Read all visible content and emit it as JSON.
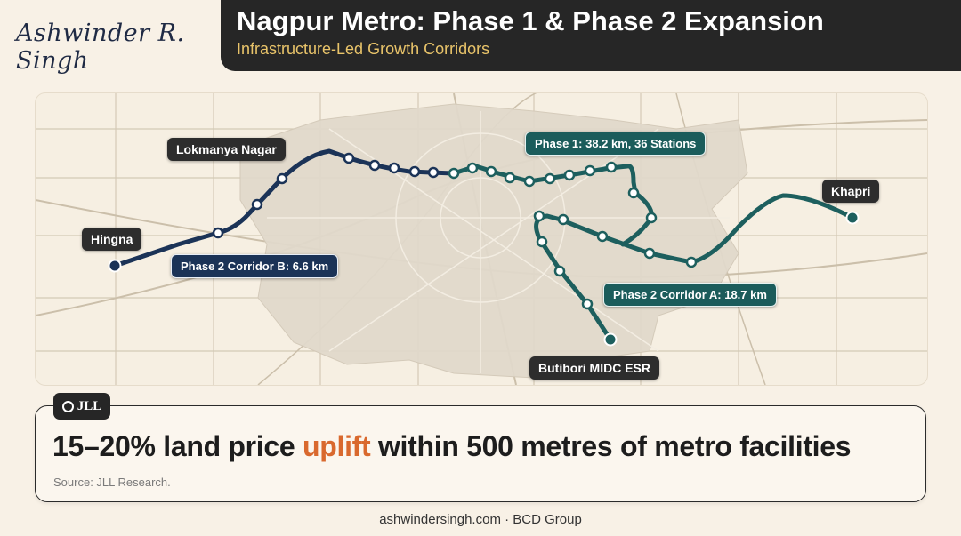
{
  "author": "Ashwinder R. Singh",
  "header": {
    "title": "Nagpur Metro: Phase 1 & Phase 2 Expansion",
    "subtitle": "Infrastructure-Led Growth Corridors"
  },
  "map": {
    "labels": {
      "lokmanya": "Lokmanya Nagar",
      "hingna": "Hingna",
      "khapri": "Khapri",
      "butibori": "Butibori MIDC ESR",
      "phase1": "Phase 1: 38.2 km, 36 Stations",
      "corridor_b": "Phase 2 Corridor B: 6.6 km",
      "corridor_a": "Phase 2 Corridor A: 18.7 km"
    },
    "colors": {
      "corridor_b_line": "#1b3357",
      "phase1_line": "#1d5f5e",
      "corridor_a_line": "#1d5f5e",
      "station_fill": "#ffffff"
    }
  },
  "badge": {
    "logo_text": "JLL"
  },
  "stat": {
    "pre": "15–20% land price ",
    "highlight": "uplift",
    "post": " within 500 metres of metro facilities",
    "source": "Source: JLL Research.",
    "highlight_color": "#d9692e"
  },
  "footer": {
    "text": "ashwindersingh.com · BCD Group"
  }
}
